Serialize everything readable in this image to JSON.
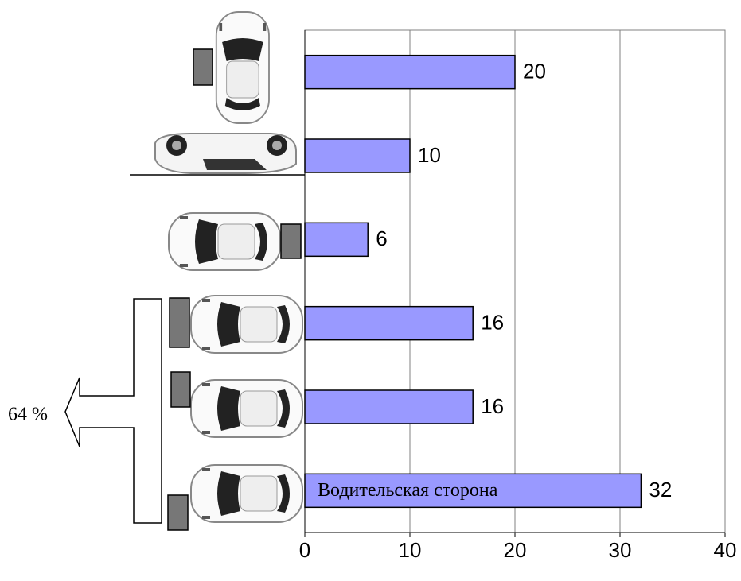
{
  "chart_data": {
    "type": "bar",
    "orientation": "horizontal",
    "categories": [
      null,
      null,
      null,
      null,
      null,
      null
    ],
    "values": [
      20,
      10,
      6,
      16,
      16,
      32
    ],
    "color": "#9999ff",
    "xlim": [
      0,
      40
    ],
    "xticks": [
      0,
      10,
      20,
      30,
      40
    ],
    "grid": true,
    "bar_annotation": "Водительская сторона",
    "side_label": "64 %"
  }
}
